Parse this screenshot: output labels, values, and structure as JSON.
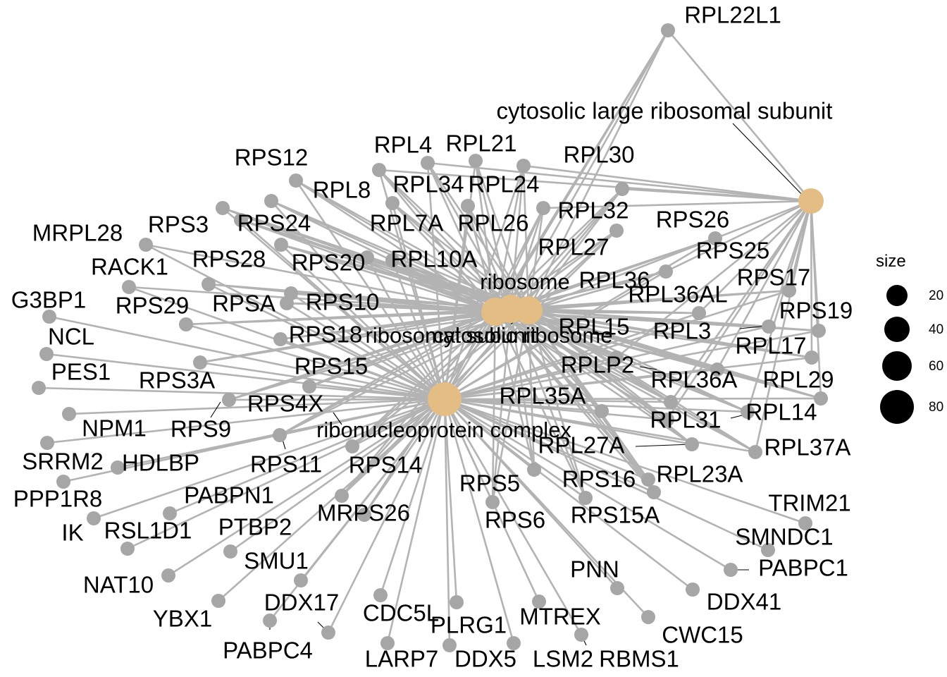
{
  "legend": {
    "title": "size",
    "entries": [
      "20",
      "40",
      "60",
      "80"
    ]
  },
  "terms": [
    {
      "id": "cytosolic_large",
      "label": "cytosolic large ribosomal subunit"
    },
    {
      "id": "ribosome",
      "label": "ribosome"
    },
    {
      "id": "ribosomal_subunit",
      "label": "ribosomal subunit"
    },
    {
      "id": "cytosolic_ribosome",
      "label": "cytosolic ribosome"
    },
    {
      "id": "rnp_complex",
      "label": "ribonucleoprotein complex"
    }
  ],
  "genes": [
    "RPL22L1",
    "RPL4",
    "RPL21",
    "RPL30",
    "RPS12",
    "RPL8",
    "RPL34",
    "RPL24",
    "RPL32",
    "RPS26",
    "MRPL28",
    "RPS3",
    "RPS24",
    "RPL7A",
    "RPL26",
    "RPL27",
    "RPS25",
    "RACK1",
    "RPS28",
    "RPS20",
    "RPL10A",
    "RPL36",
    "RPS17",
    "RPL36AL",
    "G3BP1",
    "RPS29",
    "RPSA",
    "RPS10",
    "RPS19",
    "NCL",
    "RPS18",
    "RPL15",
    "RPL3",
    "RPL17",
    "PES1",
    "RPS15",
    "RPLP2",
    "RPS3A",
    "RPL36A",
    "RPL29",
    "RPS4X",
    "RPL35A",
    "NPM1",
    "RPS9",
    "RPL14",
    "RPL31",
    "RPL37A",
    "RPL27A",
    "SRRM2",
    "HDLBP",
    "RPS11",
    "RPS14",
    "RPL23A",
    "RPS16",
    "PPP1R8",
    "PABPN1",
    "RPS5",
    "TRIM21",
    "IK",
    "RSL1D1",
    "MRPS26",
    "RPS6",
    "RPS15A",
    "SMNDC1",
    "PTBP2",
    "NAT10",
    "SMU1",
    "PABPC1",
    "PNN",
    "DDX41",
    "YBX1",
    "DDX17",
    "CDC5L",
    "PLRG1",
    "MTREX",
    "CWC15",
    "PABPC4",
    "LARP7",
    "DDX5",
    "LSM2",
    "RBMS1"
  ]
}
